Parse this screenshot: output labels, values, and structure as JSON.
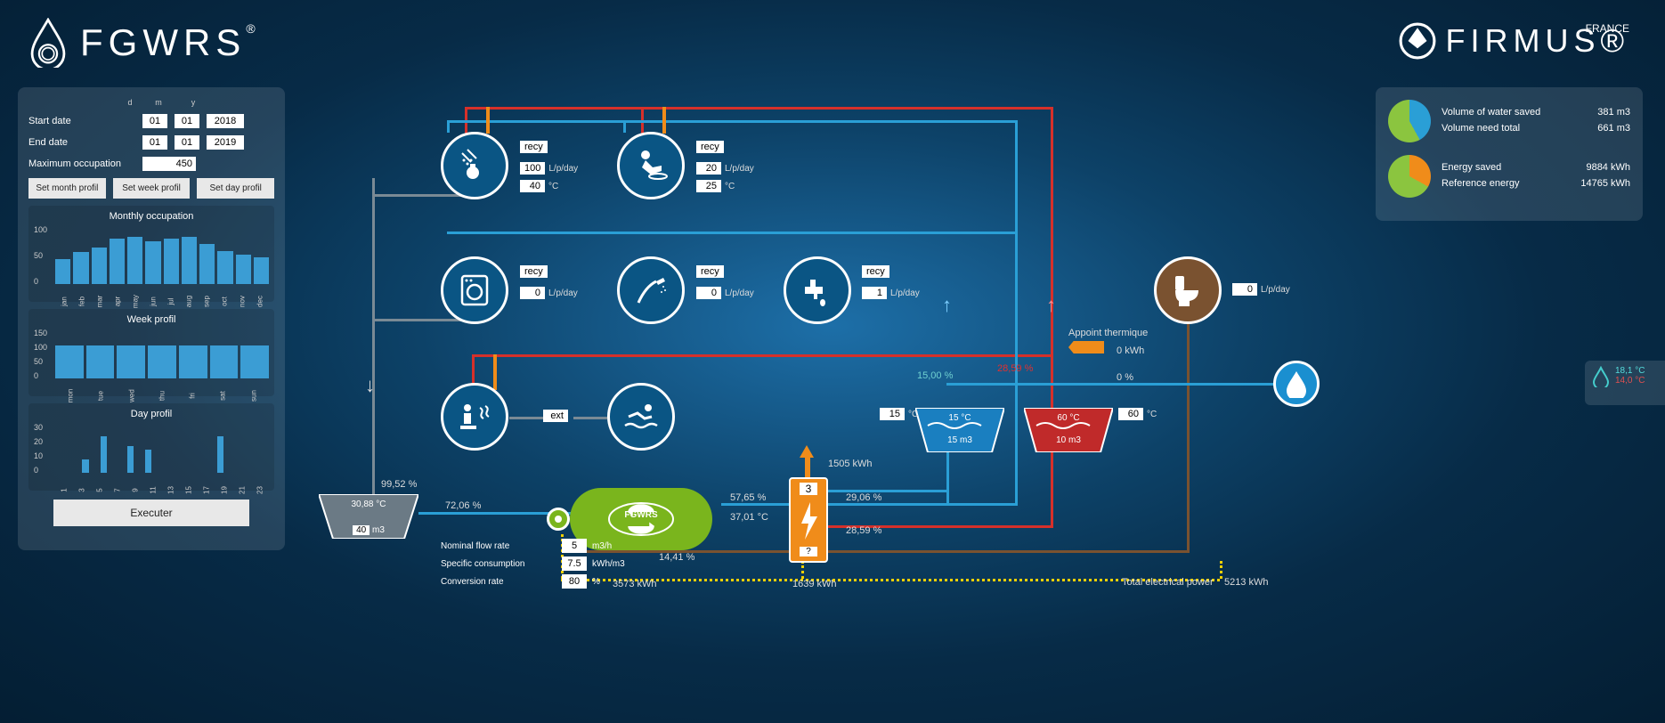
{
  "brand_left": "FGWRS",
  "brand_right": "FIRMUS",
  "brand_right_sub": "FRANCE",
  "left_panel": {
    "start_label": "Start date",
    "end_label": "End date",
    "d": "d",
    "m": "m",
    "y": "y",
    "start_d": "01",
    "start_m": "01",
    "start_y": "2018",
    "end_d": "01",
    "end_m": "01",
    "end_y": "2019",
    "maxocc_label": "Maximum occupation",
    "maxocc": "450",
    "btn_month": "Set month profil",
    "btn_week": "Set week profil",
    "btn_day": "Set day profil",
    "monthly": {
      "title": "Monthly occupation",
      "ymax": 100,
      "ticks": [
        "100",
        "50",
        "0"
      ],
      "labels": [
        "jan",
        "feb",
        "mar",
        "apr",
        "may",
        "jun",
        "jul",
        "aug",
        "sep",
        "oct",
        "nov",
        "dec"
      ],
      "values": [
        42,
        55,
        62,
        78,
        80,
        72,
        78,
        80,
        68,
        56,
        50,
        45
      ],
      "color": "#3b9dd4"
    },
    "week": {
      "title": "Week profil",
      "ymax": 150,
      "ticks": [
        "150",
        "100",
        "50",
        "0"
      ],
      "labels": [
        "mon",
        "tue",
        "wed",
        "thu",
        "fri",
        "sat",
        "sun"
      ],
      "values": [
        100,
        100,
        100,
        100,
        100,
        100,
        100
      ],
      "color": "#3b9dd4"
    },
    "day": {
      "title": "Day profil",
      "ymax": 30,
      "ticks": [
        "30",
        "20",
        "10",
        "0"
      ],
      "labels": [
        "1",
        "3",
        "5",
        "7",
        "9",
        "11",
        "13",
        "15",
        "17",
        "19",
        "21",
        "23"
      ],
      "values": [
        0,
        0,
        0,
        8,
        0,
        22,
        0,
        0,
        16,
        0,
        14,
        0,
        0,
        0,
        0,
        0,
        0,
        0,
        22,
        0,
        0,
        0,
        0,
        0
      ],
      "color": "#3b9dd4"
    },
    "exec": "Executer"
  },
  "right_panel": {
    "pie1": {
      "colors": [
        "#8bc53f",
        "#2a9fd6"
      ],
      "slice": 42,
      "l1": "Volume of water saved",
      "v1": "381",
      "u1": "m3",
      "l2": "Volume need total",
      "v2": "661",
      "u2": "m3"
    },
    "pie2": {
      "colors": [
        "#8bc53f",
        "#f08c1a"
      ],
      "slice": 33,
      "l1": "Energy saved",
      "v1": "9884",
      "u1": "kWh",
      "l2": "Reference energy",
      "v2": "14765",
      "u2": "kWh"
    }
  },
  "nodes": {
    "shower": {
      "recy": "recy",
      "lpd": "100",
      "lpd_u": "L/p/day",
      "temp": "40",
      "temp_u": "°C"
    },
    "sink": {
      "recy": "recy",
      "lpd": "20",
      "lpd_u": "L/p/day",
      "temp": "25",
      "temp_u": "°C"
    },
    "washer": {
      "recy": "recy",
      "lpd": "0",
      "lpd_u": "L/p/day"
    },
    "hose": {
      "recy": "recy",
      "lpd": "0",
      "lpd_u": "L/p/day"
    },
    "tap": {
      "recy": "recy",
      "lpd": "1",
      "lpd_u": "L/p/day"
    },
    "sauna": {
      "ext": "ext"
    },
    "pool": {},
    "toilet": {
      "lpd": "0",
      "lpd_u": "L/p/day"
    }
  },
  "tanks": {
    "grey": {
      "temp": "30,88",
      "temp_u": "°C",
      "vol": "40",
      "vol_u": "m3",
      "pct": "99,52",
      "pct_u": "%"
    },
    "cold": {
      "temp": "15",
      "temp_u": "°C",
      "vol": "15",
      "vol_u": "m3",
      "in": "15",
      "in_u": "°C"
    },
    "hot": {
      "temp": "60",
      "temp_u": "°C",
      "vol": "10",
      "vol_u": "m3",
      "in": "60",
      "in_u": "°C"
    }
  },
  "proc": {
    "label": "FGWRS",
    "nominal_l": "Nominal flow rate",
    "nominal_v": "5",
    "nominal_u": "m3/h",
    "specific_l": "Specific consumption",
    "specific_v": "7.5",
    "specific_u": "kWh/m3",
    "conv_l": "Conversion rate",
    "conv_v": "80",
    "conv_u": "%",
    "in_pct": "72,06",
    "out_pct1": "57,65",
    "out_pct2": "37,01",
    "out_u": "°C",
    "drain": "14,41"
  },
  "heater": {
    "top_kwh": "1505",
    "top_u": "kWh",
    "v": "3",
    "q": "?",
    "out1": "29,06",
    "out2": "28,59",
    "kwh": "1639"
  },
  "thermal": {
    "label": "Appoint thermique",
    "kwh": "0",
    "kwh_u": "kWh",
    "pct": "0",
    "pct_u": "%",
    "red": "28,59",
    "teal": "15,00"
  },
  "elec": {
    "proc_kwh": "3573",
    "proc_u": "kWh",
    "total_l": "Total electrical power",
    "total_v": "5213",
    "total_u": "kWh"
  },
  "side": {
    "teal": "18,1 °C",
    "red": "14,0 °C"
  }
}
